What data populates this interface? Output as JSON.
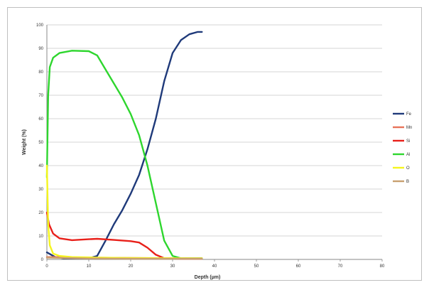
{
  "chart_data": {
    "type": "line",
    "title": "",
    "xlabel": "Depth (µm)",
    "ylabel": "Weight (%)",
    "xlim": [
      0,
      80
    ],
    "ylim": [
      0,
      100
    ],
    "xticks": [
      0,
      10,
      20,
      30,
      40,
      50,
      60,
      70,
      80
    ],
    "yticks": [
      0,
      10,
      20,
      30,
      40,
      50,
      60,
      70,
      80,
      90,
      100
    ],
    "grid": "horizontal",
    "legend_position": "right",
    "series": [
      {
        "name": "Fe",
        "color": "#1f3a7a",
        "points": [
          [
            0,
            3
          ],
          [
            2,
            1
          ],
          [
            4,
            0.5
          ],
          [
            10,
            0.5
          ],
          [
            12,
            1.5
          ],
          [
            14,
            8
          ],
          [
            16,
            15
          ],
          [
            18,
            21
          ],
          [
            20,
            28
          ],
          [
            22,
            36
          ],
          [
            24,
            47
          ],
          [
            26,
            60
          ],
          [
            28,
            76
          ],
          [
            30,
            88
          ],
          [
            32,
            93.5
          ],
          [
            34,
            96
          ],
          [
            36,
            97
          ],
          [
            37,
            97
          ]
        ]
      },
      {
        "name": "Mn",
        "color": "#e8735a",
        "points": [
          [
            0,
            1
          ],
          [
            2,
            1
          ],
          [
            10,
            0.8
          ],
          [
            20,
            0.6
          ],
          [
            30,
            0.5
          ],
          [
            37,
            0.5
          ]
        ]
      },
      {
        "name": "Si",
        "color": "#e8201a",
        "points": [
          [
            0,
            20
          ],
          [
            0.5,
            15
          ],
          [
            1.5,
            11
          ],
          [
            3,
            9
          ],
          [
            6,
            8.2
          ],
          [
            10,
            8.6
          ],
          [
            12,
            8.8
          ],
          [
            16,
            8.3
          ],
          [
            20,
            7.8
          ],
          [
            22,
            7.2
          ],
          [
            24,
            5
          ],
          [
            26,
            2
          ],
          [
            28,
            0.5
          ],
          [
            32,
            0.3
          ],
          [
            37,
            0.3
          ]
        ]
      },
      {
        "name": "Al",
        "color": "#2ed62e",
        "points": [
          [
            0,
            35
          ],
          [
            0.3,
            70
          ],
          [
            0.7,
            82
          ],
          [
            1.5,
            86
          ],
          [
            3,
            88
          ],
          [
            6,
            89
          ],
          [
            10,
            88.8
          ],
          [
            12,
            87
          ],
          [
            14,
            81
          ],
          [
            16,
            75
          ],
          [
            18,
            69
          ],
          [
            20,
            62
          ],
          [
            22,
            53
          ],
          [
            24,
            40
          ],
          [
            26,
            24
          ],
          [
            28,
            8
          ],
          [
            30,
            1.5
          ],
          [
            32,
            0.5
          ],
          [
            37,
            0.5
          ]
        ]
      },
      {
        "name": "O",
        "color": "#f5f51e",
        "points": [
          [
            0,
            40
          ],
          [
            0.3,
            15
          ],
          [
            0.7,
            6
          ],
          [
            1.5,
            2.5
          ],
          [
            3,
            1.5
          ],
          [
            6,
            1
          ],
          [
            12,
            0.8
          ],
          [
            20,
            0.6
          ],
          [
            37,
            0.5
          ]
        ]
      },
      {
        "name": "B",
        "color": "#c8a070",
        "points": [
          [
            0,
            0.8
          ],
          [
            10,
            0.4
          ],
          [
            20,
            0.3
          ],
          [
            37,
            0.3
          ]
        ]
      }
    ]
  }
}
